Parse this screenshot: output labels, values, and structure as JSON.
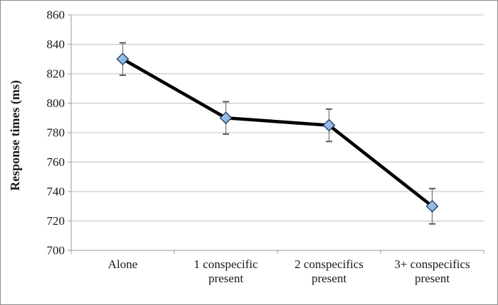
{
  "window": {
    "background": "#FFFFFF",
    "frame_border_color": "#8C8C8C"
  },
  "chart_data": {
    "type": "line",
    "title": "",
    "xlabel": "",
    "ylabel": "Response times (ms)",
    "ylim": [
      700,
      860
    ],
    "ytick_step": 20,
    "yticks": [
      700,
      720,
      740,
      760,
      780,
      800,
      820,
      840,
      860
    ],
    "grid": true,
    "legend": false,
    "categories": [
      "Alone",
      "1 conspecific present",
      "2 conspecifics present",
      "3+ conspecifics present"
    ],
    "category_label_lines": [
      [
        "Alone"
      ],
      [
        "1 conspecific",
        "present"
      ],
      [
        "2 conspecifics",
        "present"
      ],
      [
        "3+ conspecifics",
        "present"
      ]
    ],
    "series": [
      {
        "name": "Response times",
        "values": [
          830,
          790,
          785,
          730
        ],
        "errors": [
          11,
          11,
          11,
          12
        ],
        "line_color": "#000000",
        "marker": "diamond",
        "marker_fill": "#8FB6E4",
        "marker_fill_light": "#A9CBEE",
        "marker_fill_dark": "#7FA9DB",
        "marker_stroke": "#1F3A5F"
      }
    ],
    "colors": {
      "gridline": "#C9C9C9",
      "axis": "#ABABAB",
      "tick": "#ABABAB",
      "error_bar": "#7A7A7A",
      "error_cap": "#5A5A5A",
      "text": "#1A1A1A"
    }
  }
}
